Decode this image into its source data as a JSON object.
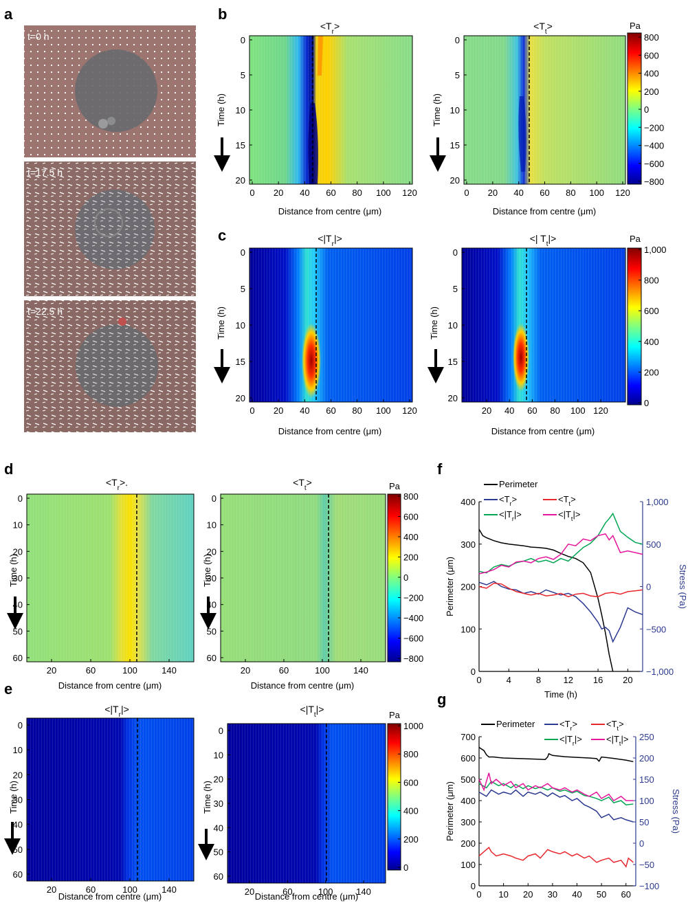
{
  "panel_labels": {
    "a": "a",
    "b": "b",
    "c": "c",
    "d": "d",
    "e": "e",
    "f": "f",
    "g": "g"
  },
  "panel_a": {
    "timepoints": [
      "t=0 h",
      "t=17.5 h",
      "t=22.5 h"
    ]
  },
  "common": {
    "xlabel": "Distance from centre (μm)",
    "ylabel_time": "Time (h)",
    "unit": "Pa"
  },
  "colorbars": {
    "signed": {
      "ticks": [
        "800",
        "600",
        "400",
        "200",
        "0",
        "−200",
        "−400",
        "−600",
        "−800"
      ]
    },
    "abs_c": {
      "ticks": [
        "1,000",
        "800",
        "600",
        "400",
        "200",
        "0"
      ]
    },
    "abs_e": {
      "ticks": [
        "1000",
        "800",
        "600",
        "400",
        "200",
        "0"
      ]
    }
  },
  "heatmaps": {
    "b_left": {
      "title_base": "<T",
      "title_sub": "r",
      "title_end": ">"
    },
    "b_right": {
      "title_base": "<T",
      "title_sub": "t",
      "title_end": ">"
    },
    "c_left": {
      "title_base": "<|T",
      "title_sub": "r",
      "title_end": "|>"
    },
    "c_right": {
      "title_base": "<| T",
      "title_sub": "t",
      "title_end": "|>"
    },
    "d_left": {
      "title_base": "<T",
      "title_sub": "r",
      "title_end": ">."
    },
    "d_right": {
      "title_base": "<T",
      "title_sub": "t",
      "title_end": ">"
    },
    "e_left": {
      "title_base": "<|T",
      "title_sub": "r",
      "title_end": "|>"
    },
    "e_right": {
      "title_base": "<|T",
      "title_sub": "t",
      "title_end": "|>"
    },
    "bc_xticks_full": [
      "0",
      "20",
      "40",
      "60",
      "80",
      "100",
      "120"
    ],
    "c_right_xticks": [
      "20",
      "40",
      "60",
      "80",
      "100",
      "120"
    ],
    "bc_yticks": [
      "0",
      "5",
      "10",
      "15",
      "20"
    ],
    "de_xticks": [
      "20",
      "60",
      "100",
      "140"
    ],
    "de_yticks": [
      "0",
      "10",
      "20",
      "30",
      "40",
      "50",
      "60"
    ]
  },
  "chart_data": [
    {
      "id": "f",
      "type": "line",
      "xlabel": "Time (h)",
      "ylabel": "Perimeter (μm)",
      "y2label": "Stress (Pa)",
      "xlim": [
        0,
        22
      ],
      "ylim": [
        0,
        400
      ],
      "y2lim": [
        -1000,
        1000
      ],
      "xticks": [
        "0",
        "4",
        "8",
        "12",
        "16",
        "20"
      ],
      "yticks": [
        "0",
        "100",
        "200",
        "300",
        "400"
      ],
      "y2ticks": [
        "−1,000",
        "−500",
        "0",
        "500",
        "1,000"
      ],
      "legend": [
        {
          "base": "Perimeter",
          "sub": "",
          "end": "",
          "color": "#000000"
        },
        {
          "base": "<T",
          "sub": "r",
          "end": ">",
          "color": "#2b3990"
        },
        {
          "base": "<T",
          "sub": "t",
          "end": ">",
          "color": "#e8272d"
        },
        {
          "base": "<|T",
          "sub": "r",
          "end": "|>",
          "color": "#00a651"
        },
        {
          "base": "<|T",
          "sub": "t",
          "end": "|>",
          "color": "#e5159c"
        }
      ],
      "series": [
        {
          "name": "Perimeter",
          "axis": "left",
          "color": "#000000",
          "x": [
            0,
            0.5,
            1,
            2,
            3,
            4,
            5,
            6,
            7,
            8,
            9,
            10,
            11,
            12,
            13,
            14,
            15,
            16,
            16.5,
            17,
            17.5,
            18
          ],
          "y": [
            335,
            320,
            315,
            308,
            303,
            300,
            298,
            296,
            293,
            292,
            290,
            286,
            278,
            271,
            266,
            256,
            233,
            172,
            133,
            90,
            40,
            0
          ]
        },
        {
          "name": "<Tr>",
          "axis": "right",
          "color": "#2b3990",
          "x": [
            0,
            1,
            2,
            3,
            4,
            5,
            6,
            7,
            8,
            9,
            10,
            11,
            12,
            13,
            14,
            15,
            16,
            16.5,
            17,
            17.5,
            18,
            19,
            20,
            21,
            22
          ],
          "y": [
            50,
            20,
            60,
            0,
            -30,
            -40,
            -80,
            -60,
            -90,
            -40,
            -70,
            -100,
            -80,
            -120,
            -200,
            -300,
            -420,
            -500,
            -480,
            -520,
            -650,
            -480,
            -250,
            -300,
            -330
          ]
        },
        {
          "name": "<Tt>",
          "axis": "right",
          "color": "#e8272d",
          "x": [
            0,
            1,
            2,
            3,
            4,
            5,
            6,
            7,
            8,
            9,
            10,
            11,
            12,
            13,
            14,
            15,
            16,
            17,
            18,
            19,
            20,
            21,
            22
          ],
          "y": [
            0,
            -20,
            40,
            30,
            -20,
            -60,
            -80,
            -100,
            -80,
            -110,
            -100,
            -80,
            -120,
            -90,
            -80,
            -110,
            -120,
            -80,
            -70,
            -90,
            -60,
            -50,
            -40
          ]
        },
        {
          "name": "<|Tr|>",
          "axis": "right",
          "color": "#00a651",
          "x": [
            0,
            1,
            2,
            3,
            4,
            5,
            6,
            7,
            8,
            9,
            10,
            11,
            12,
            13,
            14,
            15,
            16,
            17,
            17.5,
            18,
            19,
            20,
            21,
            22
          ],
          "y": [
            180,
            160,
            230,
            260,
            240,
            280,
            300,
            330,
            290,
            310,
            280,
            330,
            300,
            380,
            460,
            510,
            600,
            750,
            800,
            860,
            650,
            580,
            520,
            500
          ]
        },
        {
          "name": "<|Tt|>",
          "axis": "right",
          "color": "#e5159c",
          "x": [
            0,
            1,
            2,
            3,
            4,
            5,
            6,
            7,
            8,
            9,
            10,
            11,
            12,
            13,
            14,
            15,
            16,
            17,
            17.5,
            18,
            19,
            20,
            21,
            22
          ],
          "y": [
            150,
            170,
            200,
            250,
            230,
            290,
            300,
            280,
            330,
            350,
            320,
            380,
            500,
            480,
            560,
            540,
            600,
            620,
            550,
            600,
            400,
            420,
            400,
            380
          ]
        }
      ]
    },
    {
      "id": "g",
      "type": "line",
      "xlabel": "Time (h)",
      "ylabel": "Perimeter (μm)",
      "y2label": "Stress (Pa)",
      "xlim": [
        0,
        64
      ],
      "ylim": [
        0,
        700
      ],
      "y2lim": [
        -100,
        250
      ],
      "xticks": [
        "0",
        "10",
        "20",
        "30",
        "40",
        "50",
        "60"
      ],
      "yticks": [
        "0",
        "100",
        "200",
        "300",
        "400",
        "500",
        "600",
        "700"
      ],
      "y2ticks": [
        "−100",
        "−50",
        "0",
        "50",
        "100",
        "150",
        "200",
        "250"
      ],
      "legend": [
        {
          "base": "Perimeter",
          "sub": "",
          "end": "",
          "color": "#000000"
        },
        {
          "base": "<T",
          "sub": "r",
          "end": ">",
          "color": "#2b3990"
        },
        {
          "base": "<T",
          "sub": "t",
          "end": ">",
          "color": "#e8272d"
        },
        {
          "base": "<|T",
          "sub": "r",
          "end": "|>",
          "color": "#00a651"
        },
        {
          "base": "<|T",
          "sub": "t",
          "end": "|>",
          "color": "#e5159c"
        }
      ],
      "series": [
        {
          "name": "Perimeter",
          "axis": "left",
          "color": "#000000",
          "x": [
            0,
            2,
            3,
            4,
            6,
            8,
            10,
            15,
            20,
            25,
            27,
            28,
            28.5,
            30,
            35,
            40,
            45,
            48,
            49,
            50,
            55,
            60,
            63
          ],
          "y": [
            650,
            635,
            615,
            605,
            605,
            602,
            600,
            598,
            596,
            594,
            593,
            605,
            620,
            612,
            606,
            603,
            600,
            597,
            585,
            605,
            598,
            590,
            583
          ]
        },
        {
          "name": "<Tr>",
          "axis": "right",
          "color": "#2b3990",
          "x": [
            0,
            3,
            5,
            8,
            10,
            13,
            15,
            18,
            20,
            23,
            25,
            28,
            30,
            33,
            35,
            38,
            40,
            43,
            45,
            48,
            50,
            53,
            55,
            58,
            60,
            63
          ],
          "y": [
            120,
            110,
            125,
            115,
            120,
            115,
            125,
            110,
            120,
            115,
            120,
            110,
            118,
            108,
            112,
            100,
            105,
            90,
            85,
            75,
            60,
            68,
            55,
            60,
            55,
            50
          ]
        },
        {
          "name": "<Tt>",
          "axis": "right",
          "color": "#e8272d",
          "x": [
            0,
            2,
            4,
            5,
            7,
            10,
            13,
            15,
            18,
            20,
            23,
            25,
            28,
            30,
            33,
            35,
            38,
            40,
            43,
            45,
            48,
            50,
            53,
            55,
            58,
            60,
            61,
            63
          ],
          "y": [
            -30,
            -20,
            -10,
            -20,
            -30,
            -25,
            -30,
            -35,
            -40,
            -30,
            -25,
            -35,
            -15,
            -20,
            -25,
            -20,
            -30,
            -25,
            -35,
            -30,
            -45,
            -40,
            -35,
            -45,
            -40,
            -55,
            -35,
            -45
          ]
        },
        {
          "name": "<|Tr|>",
          "axis": "right",
          "color": "#00a651",
          "x": [
            0,
            3,
            5,
            8,
            10,
            13,
            15,
            18,
            20,
            23,
            25,
            28,
            30,
            33,
            35,
            38,
            40,
            43,
            45,
            48,
            50,
            53,
            55,
            58,
            60,
            63
          ],
          "y": [
            140,
            130,
            145,
            135,
            140,
            130,
            138,
            128,
            135,
            128,
            132,
            125,
            130,
            122,
            125,
            118,
            122,
            112,
            110,
            105,
            100,
            108,
            95,
            100,
            90,
            92
          ]
        },
        {
          "name": "<|Tt|>",
          "axis": "right",
          "color": "#e5159c",
          "x": [
            0,
            2,
            4,
            5,
            7,
            10,
            13,
            15,
            18,
            20,
            23,
            25,
            28,
            30,
            33,
            35,
            38,
            40,
            43,
            45,
            48,
            50,
            53,
            55,
            58,
            60,
            63
          ],
          "y": [
            150,
            125,
            165,
            140,
            150,
            135,
            145,
            130,
            140,
            125,
            135,
            130,
            140,
            130,
            125,
            130,
            120,
            125,
            115,
            110,
            120,
            105,
            115,
            100,
            110,
            100,
            100
          ]
        }
      ]
    }
  ]
}
